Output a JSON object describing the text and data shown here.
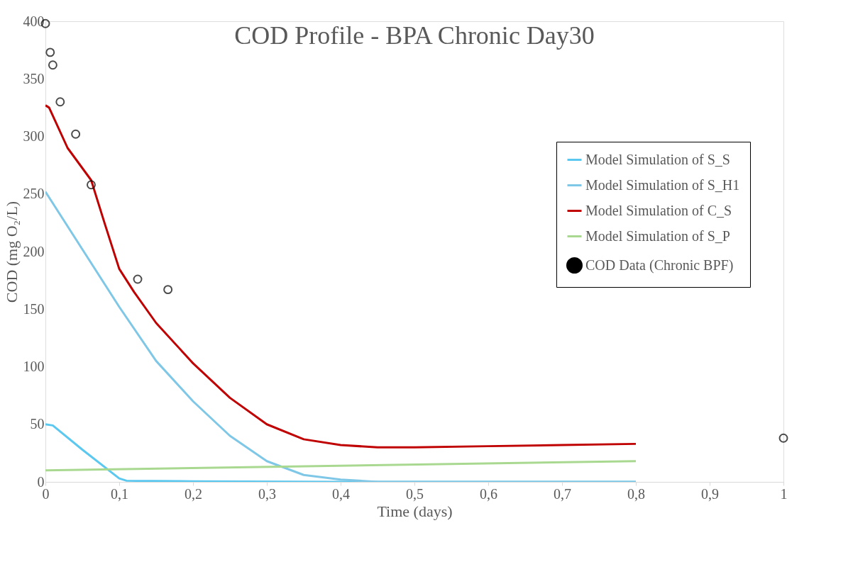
{
  "chart_data": {
    "type": "line",
    "title": "COD Profile - BPA Chronic Day30",
    "xlabel": "Time (days)",
    "ylabel": "COD (mg O₂/L)",
    "xlim": [
      0,
      1
    ],
    "xticks": [
      0,
      {
        "value": 0.1,
        "label": "0,1"
      },
      {
        "value": 0.2,
        "label": "0,2"
      },
      {
        "value": 0.3,
        "label": "0,3"
      },
      {
        "value": 0.4,
        "label": "0,4"
      },
      {
        "value": 0.5,
        "label": "0,5"
      },
      {
        "value": 0.6,
        "label": "0,6"
      },
      {
        "value": 0.7,
        "label": "0,7"
      },
      {
        "value": 0.8,
        "label": "0,8"
      },
      {
        "value": 0.9,
        "label": "0,9"
      },
      1
    ],
    "ylim": [
      0,
      400
    ],
    "yticks": [
      0,
      50,
      100,
      150,
      200,
      250,
      300,
      350,
      400
    ],
    "grid": false,
    "legend": "right",
    "line_style": "solid",
    "series": [
      {
        "name": "Model Simulation of S_S",
        "color": "#5bc8f0",
        "x": [
          0,
          0.01,
          0.05,
          0.1,
          0.11,
          0.2,
          0.4,
          0.8
        ],
        "values": [
          50,
          49,
          28,
          3,
          1,
          0.5,
          0,
          0
        ]
      },
      {
        "name": "Model Simulation of S_H1",
        "color": "#7fc7e6",
        "x": [
          0,
          0.05,
          0.1,
          0.15,
          0.2,
          0.25,
          0.3,
          0.35,
          0.4,
          0.45,
          0.6,
          0.8
        ],
        "values": [
          252,
          202,
          152,
          105,
          70,
          40,
          18,
          6,
          2,
          0,
          0,
          0
        ]
      },
      {
        "name": "Model Simulation of C_S",
        "color": "#c00000",
        "x": [
          0,
          0.005,
          0.03,
          0.062,
          0.08,
          0.1,
          0.12,
          0.15,
          0.2,
          0.25,
          0.3,
          0.35,
          0.4,
          0.45,
          0.5,
          0.6,
          0.7,
          0.8
        ],
        "values": [
          327,
          325,
          290,
          262,
          225,
          185,
          165,
          138,
          103,
          73,
          50,
          37,
          32,
          30,
          30,
          31,
          32,
          33
        ]
      },
      {
        "name": "Model Simulation of S_P",
        "color": "#a9d990",
        "x": [
          0,
          0.8
        ],
        "values": [
          10,
          18
        ]
      },
      {
        "name": "COD Data (Chronic BPF)",
        "color": "#000000",
        "type": "scatter",
        "marker": "circle",
        "x": [
          0,
          0.0065,
          0.01,
          0.02,
          0.041,
          0.062,
          0.125,
          0.166,
          1
        ],
        "values": [
          398,
          373,
          362,
          330,
          302,
          258,
          176,
          167,
          38
        ]
      }
    ]
  }
}
